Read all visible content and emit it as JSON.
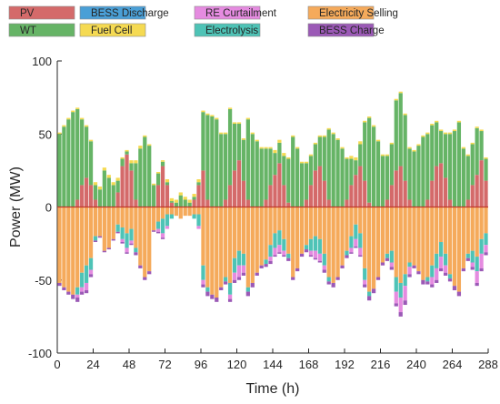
{
  "chart_data": {
    "type": "bar",
    "stacked": true,
    "title": "",
    "xlabel": "Time (h)",
    "ylabel": "Power (MW)",
    "xlim": [
      0,
      288
    ],
    "ylim": [
      -100,
      100
    ],
    "x_ticks": [
      0,
      24,
      48,
      72,
      96,
      120,
      144,
      168,
      192,
      216,
      240,
      264,
      288
    ],
    "y_ticks": [
      -100,
      -50,
      0,
      50,
      100
    ],
    "grid": false,
    "legend_position": "top",
    "legend": [
      {
        "name": "PV",
        "color": "#D46A6A"
      },
      {
        "name": "BESS Discharge",
        "color": "#4A9FD6"
      },
      {
        "name": "RE Curtailment",
        "color": "#E58BE0"
      },
      {
        "name": "Electricity Selling",
        "color": "#F5AA5B"
      },
      {
        "name": "WT",
        "color": "#66B466"
      },
      {
        "name": "Fuel Cell",
        "color": "#F5DA52"
      },
      {
        "name": "Electrolysis",
        "color": "#4EC3B6"
      },
      {
        "name": "BESS Charge",
        "color": "#9B59B6"
      }
    ],
    "x": [
      0,
      3,
      6,
      9,
      12,
      15,
      18,
      21,
      24,
      27,
      30,
      33,
      36,
      39,
      42,
      45,
      48,
      51,
      54,
      57,
      60,
      63,
      66,
      69,
      72,
      75,
      78,
      81,
      84,
      87,
      90,
      93,
      96,
      99,
      102,
      105,
      108,
      111,
      114,
      117,
      120,
      123,
      126,
      129,
      132,
      135,
      138,
      141,
      144,
      147,
      150,
      153,
      156,
      159,
      162,
      165,
      168,
      171,
      174,
      177,
      180,
      183,
      186,
      189,
      192,
      195,
      198,
      201,
      204,
      207,
      210,
      213,
      216,
      219,
      222,
      225,
      228,
      231,
      234,
      237,
      240,
      243,
      246,
      249,
      252,
      255,
      258,
      261,
      264,
      267,
      270,
      273,
      276,
      279,
      282,
      285
    ],
    "series": [
      {
        "name": "PV",
        "values": [
          0,
          0,
          0,
          0,
          5,
          15,
          20,
          15,
          5,
          0,
          0,
          0,
          0,
          10,
          28,
          36,
          25,
          5,
          0,
          0,
          0,
          0,
          15,
          28,
          15,
          3,
          0,
          0,
          0,
          0,
          5,
          15,
          25,
          5,
          0,
          0,
          0,
          5,
          15,
          25,
          32,
          18,
          5,
          0,
          0,
          0,
          5,
          15,
          22,
          30,
          15,
          3,
          0,
          0,
          0,
          5,
          15,
          25,
          28,
          18,
          5,
          0,
          0,
          0,
          5,
          15,
          22,
          28,
          18,
          3,
          0,
          0,
          0,
          5,
          15,
          25,
          28,
          18,
          5,
          0,
          0,
          0,
          5,
          18,
          28,
          30,
          20,
          5,
          0,
          0,
          0,
          5,
          15,
          22,
          32,
          18
        ]
      },
      {
        "name": "WT",
        "values": [
          50,
          55,
          60,
          65,
          62,
          45,
          35,
          30,
          10,
          12,
          25,
          20,
          15,
          8,
          5,
          2,
          5,
          25,
          40,
          48,
          42,
          15,
          8,
          3,
          2,
          1,
          3,
          8,
          5,
          3,
          2,
          2,
          40,
          58,
          62,
          60,
          50,
          45,
          52,
          32,
          25,
          28,
          55,
          50,
          45,
          40,
          35,
          25,
          15,
          14,
          20,
          30,
          48,
          40,
          30,
          25,
          20,
          18,
          20,
          30,
          48,
          50,
          46,
          40,
          28,
          18,
          10,
          15,
          40,
          58,
          55,
          45,
          35,
          30,
          28,
          48,
          50,
          45,
          35,
          38,
          42,
          48,
          45,
          38,
          30,
          22,
          30,
          45,
          52,
          58,
          40,
          30,
          28,
          32,
          20,
          15
        ]
      },
      {
        "name": "BESS Discharge",
        "values": [
          0,
          0,
          0,
          0,
          0,
          0,
          0,
          0,
          0,
          0,
          0,
          0,
          0,
          0,
          0,
          0,
          0,
          0,
          0,
          0,
          0,
          0,
          0,
          0,
          0,
          0,
          0,
          0,
          0,
          0,
          0,
          0,
          0,
          0,
          0,
          0,
          0,
          0,
          0,
          0,
          0,
          0,
          0,
          0,
          0,
          0,
          0,
          0,
          0,
          0,
          0,
          0,
          0,
          0,
          0,
          0,
          0,
          0,
          0,
          0,
          0,
          0,
          0,
          0,
          0,
          0,
          0,
          0,
          0,
          0,
          0,
          0,
          0,
          0,
          0,
          0,
          0,
          0,
          0,
          0,
          0,
          0,
          0,
          0,
          0,
          0,
          0,
          0,
          0,
          0,
          0,
          0,
          0,
          0,
          0,
          0
        ]
      },
      {
        "name": "Fuel Cell",
        "values": [
          1,
          1,
          1,
          1,
          1,
          1,
          1,
          1,
          2,
          2,
          2,
          2,
          2,
          2,
          1,
          1,
          2,
          2,
          2,
          1,
          1,
          1,
          1,
          1,
          2,
          2,
          2,
          2,
          2,
          2,
          2,
          2,
          1,
          1,
          1,
          1,
          1,
          1,
          1,
          1,
          1,
          1,
          1,
          1,
          1,
          1,
          1,
          1,
          2,
          2,
          2,
          1,
          1,
          1,
          1,
          1,
          1,
          1,
          1,
          1,
          1,
          1,
          1,
          1,
          1,
          2,
          2,
          2,
          1,
          1,
          1,
          1,
          1,
          1,
          1,
          1,
          1,
          1,
          1,
          1,
          1,
          1,
          1,
          1,
          1,
          1,
          1,
          1,
          1,
          1,
          1,
          1,
          1,
          1,
          1,
          1
        ]
      },
      {
        "name": "Electricity Selling",
        "values": [
          -52,
          -55,
          -58,
          -60,
          -55,
          -45,
          -40,
          -35,
          -20,
          -20,
          -30,
          -28,
          -22,
          -12,
          -14,
          -18,
          -15,
          -28,
          -40,
          -48,
          -44,
          -16,
          -10,
          -8,
          -5,
          -5,
          -6,
          -8,
          -6,
          -6,
          -5,
          -5,
          -40,
          -55,
          -60,
          -62,
          -55,
          -48,
          -52,
          -35,
          -30,
          -32,
          -55,
          -52,
          -45,
          -40,
          -36,
          -26,
          -18,
          -16,
          -22,
          -32,
          -48,
          -42,
          -32,
          -26,
          -22,
          -20,
          -22,
          -32,
          -48,
          -52,
          -48,
          -40,
          -30,
          -20,
          -12,
          -18,
          -42,
          -58,
          -56,
          -48,
          -38,
          -32,
          -30,
          -48,
          -52,
          -46,
          -38,
          -40,
          -44,
          -50,
          -48,
          -40,
          -32,
          -24,
          -32,
          -46,
          -54,
          -58,
          -42,
          -32,
          -30,
          -34,
          -22,
          -18
        ]
      },
      {
        "name": "Electrolysis",
        "values": [
          0,
          0,
          0,
          0,
          -5,
          -10,
          -12,
          -8,
          -3,
          0,
          0,
          0,
          0,
          -5,
          -8,
          -10,
          -8,
          -3,
          0,
          0,
          0,
          0,
          -5,
          -10,
          -8,
          -3,
          0,
          0,
          0,
          0,
          -3,
          -8,
          -10,
          -3,
          0,
          0,
          0,
          -3,
          -8,
          -10,
          -10,
          -8,
          -3,
          0,
          0,
          0,
          -3,
          -8,
          -10,
          -10,
          -8,
          -3,
          0,
          0,
          0,
          -3,
          -8,
          -10,
          -10,
          -8,
          -3,
          0,
          0,
          0,
          -3,
          -8,
          -10,
          -10,
          -8,
          -3,
          0,
          0,
          0,
          -3,
          -8,
          -10,
          -10,
          -8,
          -3,
          0,
          0,
          0,
          -3,
          -8,
          -10,
          -10,
          -8,
          -3,
          0,
          0,
          0,
          -3,
          -8,
          -10,
          -10,
          -8
        ]
      },
      {
        "name": "RE Curtailment",
        "values": [
          0,
          0,
          0,
          0,
          -2,
          -3,
          -5,
          -3,
          0,
          0,
          0,
          0,
          0,
          0,
          -2,
          -3,
          -2,
          0,
          0,
          0,
          0,
          0,
          -2,
          -3,
          -2,
          0,
          0,
          0,
          0,
          0,
          0,
          -2,
          -3,
          0,
          0,
          0,
          0,
          0,
          -3,
          -5,
          -8,
          -5,
          0,
          0,
          0,
          0,
          0,
          -3,
          -5,
          -5,
          -3,
          0,
          0,
          0,
          0,
          0,
          -3,
          -5,
          -5,
          -3,
          0,
          0,
          0,
          0,
          0,
          -3,
          -5,
          -5,
          -3,
          0,
          0,
          0,
          0,
          0,
          -3,
          -8,
          -10,
          -10,
          -5,
          0,
          0,
          0,
          0,
          -5,
          -8,
          -8,
          -5,
          0,
          0,
          0,
          0,
          0,
          -3,
          -8,
          -10,
          -5
        ]
      },
      {
        "name": "BESS Charge",
        "values": [
          -2,
          -2,
          -2,
          -3,
          -3,
          -2,
          -2,
          -2,
          -1,
          -1,
          -1,
          -1,
          -1,
          -1,
          -1,
          -1,
          -1,
          -2,
          -2,
          -2,
          -2,
          -1,
          -1,
          -1,
          0,
          0,
          0,
          0,
          0,
          0,
          0,
          0,
          -2,
          -3,
          -3,
          -3,
          -2,
          -2,
          -2,
          -2,
          -2,
          -2,
          -3,
          -3,
          -2,
          -2,
          -2,
          -2,
          -1,
          -1,
          -1,
          -2,
          -2,
          -2,
          -2,
          -2,
          -1,
          -1,
          -1,
          -2,
          -2,
          -3,
          -2,
          -2,
          -2,
          -1,
          -1,
          -1,
          -2,
          -3,
          -3,
          -2,
          -2,
          -2,
          -2,
          -2,
          -3,
          -3,
          -2,
          -2,
          -2,
          -3,
          -2,
          -2,
          -2,
          -2,
          -2,
          -2,
          -3,
          -3,
          -2,
          -2,
          -2,
          -2,
          -2,
          -2
        ]
      }
    ]
  }
}
